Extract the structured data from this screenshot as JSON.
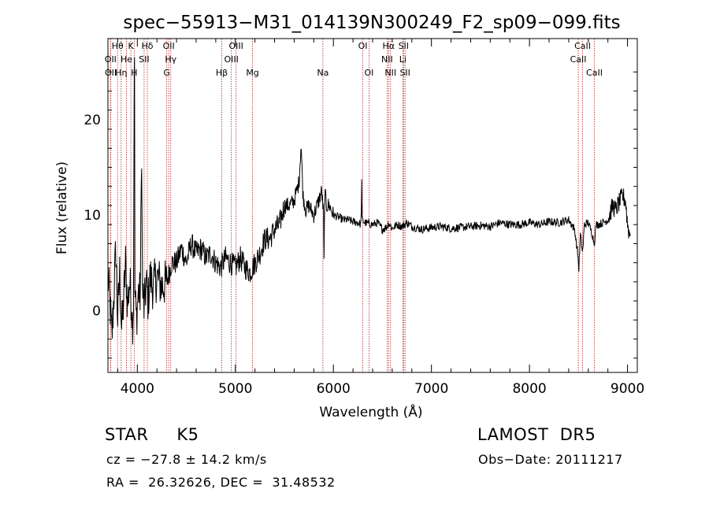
{
  "chart_data": {
    "type": "line",
    "title": "spec−55913−M31_014139N300249_F2_sp09−099.fits",
    "xlabel": "Wavelength (Å)",
    "ylabel": "Flux (relative)",
    "xlim": [
      3700,
      9100
    ],
    "ylim": [
      -6.5,
      28.5
    ],
    "x_ticks": [
      4000,
      5000,
      6000,
      7000,
      8000,
      9000
    ],
    "y_ticks": [
      0,
      10,
      20
    ],
    "line_color": "#000000",
    "marker_color": "#b22222",
    "spectrum_anchors": [
      [
        3700,
        3.5
      ],
      [
        3720,
        1.0
      ],
      [
        3740,
        -3.0
      ],
      [
        3760,
        1.5
      ],
      [
        3780,
        6.5
      ],
      [
        3800,
        -1.0
      ],
      [
        3820,
        4.0
      ],
      [
        3840,
        -2.0
      ],
      [
        3860,
        1.0
      ],
      [
        3880,
        5.0
      ],
      [
        3900,
        0.5
      ],
      [
        3920,
        3.0
      ],
      [
        3940,
        1.0
      ],
      [
        3950,
        -1.5
      ],
      [
        3960,
        0.8
      ],
      [
        3968,
        26.5
      ],
      [
        3972,
        25.0
      ],
      [
        3976,
        2.0
      ],
      [
        3990,
        -1.0
      ],
      [
        4010,
        2.0
      ],
      [
        4030,
        1.5
      ],
      [
        4045,
        18.5
      ],
      [
        4050,
        2.5
      ],
      [
        4070,
        0.0
      ],
      [
        4090,
        3.0
      ],
      [
        4110,
        1.0
      ],
      [
        4130,
        3.5
      ],
      [
        4160,
        2.5
      ],
      [
        4200,
        3.5
      ],
      [
        4250,
        2.5
      ],
      [
        4300,
        3.0
      ],
      [
        4350,
        5.0
      ],
      [
        4400,
        5.0
      ],
      [
        4450,
        6.5
      ],
      [
        4500,
        5.0
      ],
      [
        4550,
        7.0
      ],
      [
        4600,
        6.0
      ],
      [
        4650,
        6.5
      ],
      [
        4700,
        5.5
      ],
      [
        4750,
        6.0
      ],
      [
        4800,
        5.0
      ],
      [
        4850,
        4.5
      ],
      [
        4900,
        5.5
      ],
      [
        4950,
        5.0
      ],
      [
        5000,
        4.5
      ],
      [
        5050,
        5.5
      ],
      [
        5100,
        4.5
      ],
      [
        5150,
        4.0
      ],
      [
        5200,
        5.0
      ],
      [
        5250,
        6.0
      ],
      [
        5300,
        7.5
      ],
      [
        5350,
        7.5
      ],
      [
        5400,
        8.5
      ],
      [
        5450,
        9.0
      ],
      [
        5500,
        11.0
      ],
      [
        5550,
        11.0
      ],
      [
        5600,
        11.5
      ],
      [
        5650,
        13.5
      ],
      [
        5670,
        17.5
      ],
      [
        5690,
        12.0
      ],
      [
        5720,
        10.5
      ],
      [
        5750,
        11.0
      ],
      [
        5800,
        10.0
      ],
      [
        5850,
        11.5
      ],
      [
        5880,
        12.5
      ],
      [
        5900,
        10.0
      ],
      [
        5905,
        3.5
      ],
      [
        5910,
        12.5
      ],
      [
        5930,
        11.0
      ],
      [
        5960,
        11.0
      ],
      [
        6000,
        10.0
      ],
      [
        6050,
        9.8
      ],
      [
        6100,
        9.5
      ],
      [
        6150,
        9.5
      ],
      [
        6200,
        9.3
      ],
      [
        6250,
        9.2
      ],
      [
        6283,
        9.0
      ],
      [
        6287,
        15.7
      ],
      [
        6290,
        9.5
      ],
      [
        6320,
        9.2
      ],
      [
        6400,
        9.0
      ],
      [
        6450,
        9.2
      ],
      [
        6500,
        8.5
      ],
      [
        6550,
        8.8
      ],
      [
        6563,
        9.2
      ],
      [
        6600,
        8.6
      ],
      [
        6650,
        9.0
      ],
      [
        6700,
        8.8
      ],
      [
        6750,
        9.2
      ],
      [
        6800,
        8.8
      ],
      [
        6900,
        8.5
      ],
      [
        7000,
        8.7
      ],
      [
        7100,
        8.8
      ],
      [
        7200,
        8.6
      ],
      [
        7300,
        8.7
      ],
      [
        7400,
        8.8
      ],
      [
        7500,
        8.9
      ],
      [
        7600,
        8.8
      ],
      [
        7700,
        9.2
      ],
      [
        7800,
        9.0
      ],
      [
        7900,
        9.0
      ],
      [
        8000,
        9.2
      ],
      [
        8100,
        9.0
      ],
      [
        8200,
        9.3
      ],
      [
        8300,
        9.2
      ],
      [
        8400,
        9.5
      ],
      [
        8460,
        8.5
      ],
      [
        8498,
        5.5
      ],
      [
        8502,
        4.0
      ],
      [
        8520,
        8.0
      ],
      [
        8542,
        6.0
      ],
      [
        8560,
        9.0
      ],
      [
        8600,
        9.2
      ],
      [
        8640,
        8.0
      ],
      [
        8662,
        7.0
      ],
      [
        8680,
        9.0
      ],
      [
        8700,
        9.0
      ],
      [
        8750,
        9.2
      ],
      [
        8800,
        9.5
      ],
      [
        8850,
        11.0
      ],
      [
        8880,
        10.5
      ],
      [
        8900,
        11.0
      ],
      [
        8950,
        12.0
      ],
      [
        8980,
        11.5
      ],
      [
        9000,
        9.0
      ],
      [
        9020,
        8.0
      ]
    ],
    "spectral_lines": [
      {
        "label": "Hθ",
        "x": 3798,
        "row": 0
      },
      {
        "label": "K",
        "x": 3934,
        "row": 0
      },
      {
        "label": "Hδ",
        "x": 4102,
        "row": 0
      },
      {
        "label": "OII",
        "x": 4320,
        "row": 0
      },
      {
        "label": "OIII",
        "x": 5007,
        "row": 0
      },
      {
        "label": "OI",
        "x": 6300,
        "row": 0
      },
      {
        "label": "Hα",
        "x": 6563,
        "row": 0
      },
      {
        "label": "SII",
        "x": 6716,
        "row": 0
      },
      {
        "label": "CaII",
        "x": 8542,
        "row": 0
      },
      {
        "label": "OII",
        "x": 3727,
        "row": 1
      },
      {
        "label": "He",
        "x": 3889,
        "row": 1
      },
      {
        "label": "SII",
        "x": 4069,
        "row": 1
      },
      {
        "label": "Hγ",
        "x": 4341,
        "row": 1
      },
      {
        "label": "OIII",
        "x": 4959,
        "row": 1
      },
      {
        "label": "NII",
        "x": 6548,
        "row": 1
      },
      {
        "label": "Li",
        "x": 6708,
        "row": 1
      },
      {
        "label": "CaII",
        "x": 8498,
        "row": 1
      },
      {
        "label": "OII",
        "x": 3729,
        "row": 2
      },
      {
        "label": "Hη",
        "x": 3835,
        "row": 2
      },
      {
        "label": "H",
        "x": 3968,
        "row": 2
      },
      {
        "label": "G",
        "x": 4300,
        "row": 2
      },
      {
        "label": "Hβ",
        "x": 4861,
        "row": 2
      },
      {
        "label": "Mg",
        "x": 5175,
        "row": 2
      },
      {
        "label": "Na",
        "x": 5893,
        "row": 2
      },
      {
        "label": "OI",
        "x": 6363,
        "row": 2
      },
      {
        "label": "NII",
        "x": 6583,
        "row": 2
      },
      {
        "label": "SII",
        "x": 6731,
        "row": 2
      },
      {
        "label": "CaII",
        "x": 8662,
        "row": 2
      }
    ]
  },
  "info": {
    "classification": "STAR     K5",
    "survey": "LAMOST  DR5",
    "redshift": "cz = −27.8 ± 14.2 km/s",
    "obs_date": "Obs−Date: 20111217",
    "coords": "RA =  26.32626, DEC =  31.48532"
  }
}
